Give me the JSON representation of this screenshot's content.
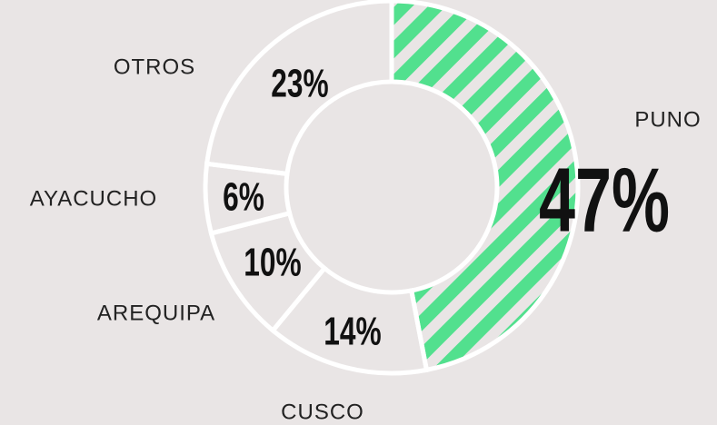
{
  "chart_data": {
    "type": "donut",
    "categories": [
      "PUNO",
      "CUSCO",
      "AREQUIPA",
      "AYACUCHO",
      "OTROS"
    ],
    "values": [
      47,
      14,
      10,
      6,
      23
    ],
    "value_labels": [
      "47%",
      "14%",
      "10%",
      "6%",
      "23%"
    ],
    "colors": [
      "#52e08e",
      "none",
      "none",
      "none",
      "none"
    ]
  }
}
